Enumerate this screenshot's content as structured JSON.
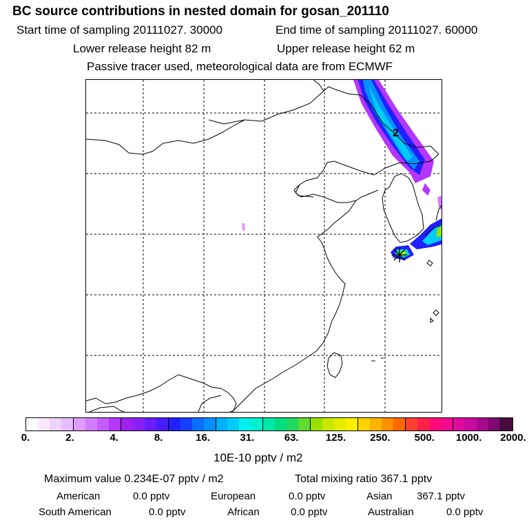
{
  "header": {
    "title": "BC  source contributions in nested domain for gosan_201110",
    "start_label": "Start time of sampling 20111027. 30000",
    "end_label": "End time of sampling 20111027. 60000",
    "lower_label": "Lower release height   82 m",
    "upper_label": "Upper release height   62 m",
    "tracer_note": "Passive tracer used, meteorological data are from ECMWF"
  },
  "map": {
    "contour_label": "2",
    "receptor": "gosan"
  },
  "colorbar": {
    "colors": [
      "#ffffff",
      "#f7e8ff",
      "#efd2ff",
      "#e6bcff",
      "#de9cff",
      "#d27cff",
      "#c65aff",
      "#b536ff",
      "#a020f0",
      "#8a20f8",
      "#6a1dfa",
      "#4b1cfa",
      "#2020ff",
      "#1540ff",
      "#0a70ff",
      "#0590ff",
      "#00b0ff",
      "#00ccf5",
      "#00f0f0",
      "#00f0d0",
      "#00e8a8",
      "#00e080",
      "#20d860",
      "#60dc30",
      "#98e000",
      "#c8e800",
      "#e6ec00",
      "#fff000",
      "#ffd200",
      "#ffb400",
      "#ff9000",
      "#ff6800",
      "#ff4030",
      "#ff2048",
      "#ff0a78",
      "#f00a90",
      "#e00aa0",
      "#c80aa0",
      "#a8088c",
      "#7e0870",
      "#4a0a40"
    ],
    "tick_labels": [
      "0.",
      "2.",
      "4.",
      "8.",
      "16.",
      "31.",
      "63.",
      "125.",
      "250.",
      "500.",
      "1000.",
      "2000."
    ],
    "unit_label": "10E-10 pptv / m2"
  },
  "summary": {
    "max_value": "Maximum value  0.234E-07 pptv / m2",
    "total_mixing": "Total mixing ratio      367.1 pptv",
    "regions": [
      {
        "name": "American",
        "value": "0.0 pptv"
      },
      {
        "name": "European",
        "value": "0.0 pptv"
      },
      {
        "name": "Asian",
        "value": "367.1 pptv"
      },
      {
        "name": "South American",
        "value": "0.0 pptv"
      },
      {
        "name": "African",
        "value": "0.0 pptv"
      },
      {
        "name": "Australian",
        "value": "0.0 pptv"
      }
    ]
  }
}
